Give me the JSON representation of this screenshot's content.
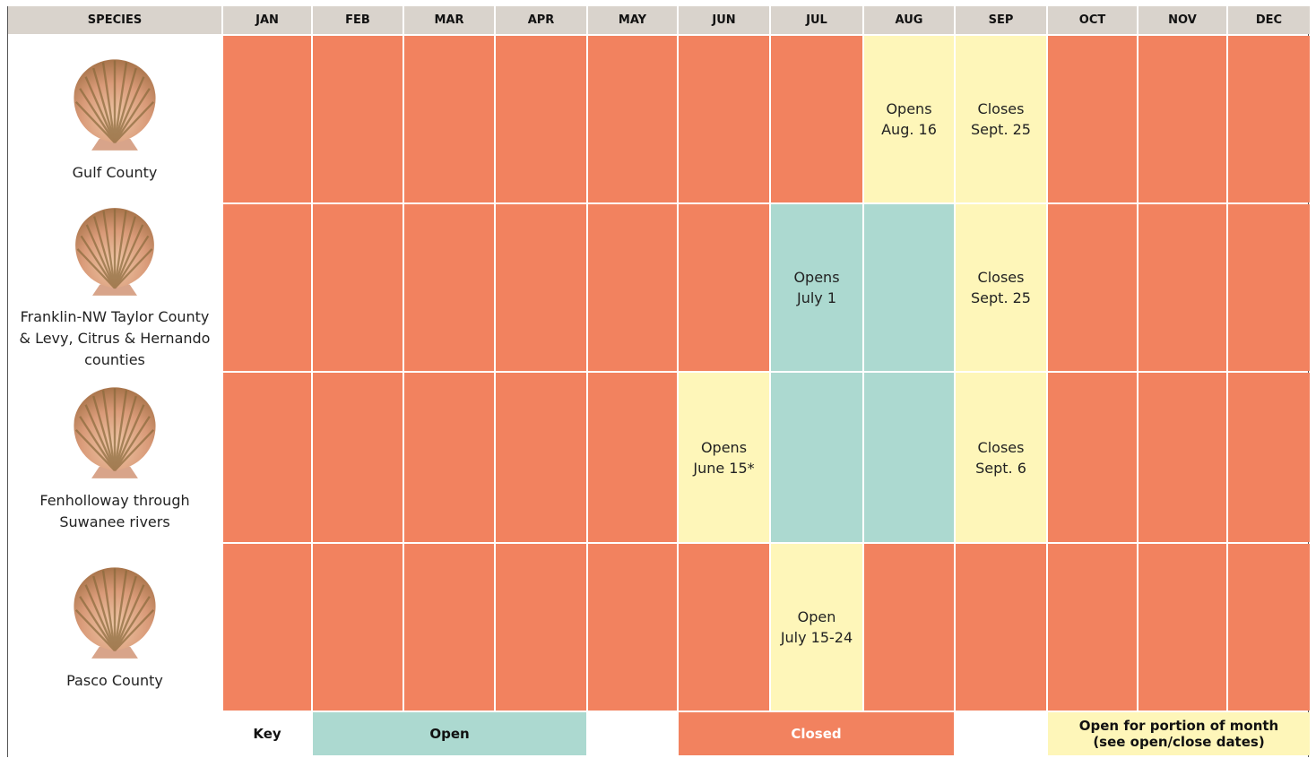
{
  "header": {
    "columns": [
      "SPECIES",
      "JAN",
      "FEB",
      "MAR",
      "APR",
      "MAY",
      "JUN",
      "JUL",
      "AUG",
      "SEP",
      "OCT",
      "NOV",
      "DEC"
    ]
  },
  "rows": [
    {
      "label": "Gulf County",
      "cells": [
        {
          "color": "#f2825f"
        },
        {
          "color": "#f2825f"
        },
        {
          "color": "#f2825f"
        },
        {
          "color": "#f2825f"
        },
        {
          "color": "#f2825f"
        },
        {
          "color": "#f2825f"
        },
        {
          "color": "#f2825f"
        },
        {
          "color": "#fef6b9",
          "text": "Opens\nAug. 16"
        },
        {
          "color": "#fef6b9",
          "text": "Closes\nSept. 25"
        },
        {
          "color": "#f2825f"
        },
        {
          "color": "#f2825f"
        },
        {
          "color": "#f2825f"
        }
      ]
    },
    {
      "label": "Franklin-NW Taylor County & Levy, Citrus & Hernando counties",
      "cells": [
        {
          "color": "#f2825f"
        },
        {
          "color": "#f2825f"
        },
        {
          "color": "#f2825f"
        },
        {
          "color": "#f2825f"
        },
        {
          "color": "#f2825f"
        },
        {
          "color": "#f2825f"
        },
        {
          "color": "#acd9d0",
          "text": "Opens\nJuly 1"
        },
        {
          "color": "#acd9d0"
        },
        {
          "color": "#fef6b9",
          "text": "Closes\nSept. 25"
        },
        {
          "color": "#f2825f"
        },
        {
          "color": "#f2825f"
        },
        {
          "color": "#f2825f"
        }
      ]
    },
    {
      "label": "Fenholloway through Suwanee rivers",
      "cells": [
        {
          "color": "#f2825f"
        },
        {
          "color": "#f2825f"
        },
        {
          "color": "#f2825f"
        },
        {
          "color": "#f2825f"
        },
        {
          "color": "#f2825f"
        },
        {
          "color": "#fef6b9",
          "text": "Opens\nJune 15*"
        },
        {
          "color": "#acd9d0"
        },
        {
          "color": "#acd9d0"
        },
        {
          "color": "#fef6b9",
          "text": "Closes\nSept. 6"
        },
        {
          "color": "#f2825f"
        },
        {
          "color": "#f2825f"
        },
        {
          "color": "#f2825f"
        }
      ]
    },
    {
      "label": "Pasco County",
      "cells": [
        {
          "color": "#f2825f"
        },
        {
          "color": "#f2825f"
        },
        {
          "color": "#f2825f"
        },
        {
          "color": "#f2825f"
        },
        {
          "color": "#f2825f"
        },
        {
          "color": "#f2825f"
        },
        {
          "color": "#fef6b9",
          "text": "Open\nJuly 15-24"
        },
        {
          "color": "#f2825f"
        },
        {
          "color": "#f2825f"
        },
        {
          "color": "#f2825f"
        },
        {
          "color": "#f2825f"
        },
        {
          "color": "#f2825f"
        }
      ]
    }
  ],
  "key": {
    "label": "Key",
    "items": [
      {
        "label": "Open",
        "color": "#acd9d0"
      },
      {
        "label": "Closed",
        "color": "#f2825f"
      },
      {
        "label": "Open for portion of month\n(see open/close dates)",
        "color": "#fef6b9"
      }
    ]
  }
}
